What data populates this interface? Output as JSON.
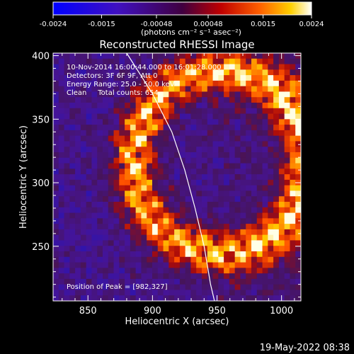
{
  "colorbar": {
    "ticks": [
      "-0.0024",
      "-0.0015",
      "-0.00048",
      "0.00048",
      "0.0015",
      "0.0024"
    ],
    "unit_label": "(photons cm⁻² s⁻¹ asec⁻²)",
    "range": [
      -0.0024,
      0.0024
    ]
  },
  "chart_data": {
    "type": "heatmap",
    "title": "Reconstructed RHESSI Image",
    "xlabel": "Heliocentric X (arcsec)",
    "ylabel": "Heliocentric Y (arcsec)",
    "xlim": [
      823,
      1015
    ],
    "ylim": [
      207,
      402
    ],
    "xticks": [
      850,
      900,
      950,
      1000
    ],
    "yticks": [
      250,
      300,
      350,
      400
    ],
    "annotations": [
      "10-Nov-2014 16:00:44.000 to 16:01:28.000",
      "Detectors: 3F 6F 9F, Att 0",
      "Energy Range: 25.0 - 50.0 keV",
      "Clean     Total counts: 654."
    ],
    "peak_label": "Position of Peak = [982,327]",
    "peak": [
      982,
      327
    ],
    "limb_curve": [
      [
        880,
        402
      ],
      [
        900,
        370
      ],
      [
        915,
        340
      ],
      [
        925,
        310
      ],
      [
        933,
        280
      ],
      [
        940,
        250
      ],
      [
        945,
        220
      ],
      [
        948,
        207
      ]
    ]
  },
  "footer": {
    "timestamp": "19-May-2022 08:38"
  }
}
